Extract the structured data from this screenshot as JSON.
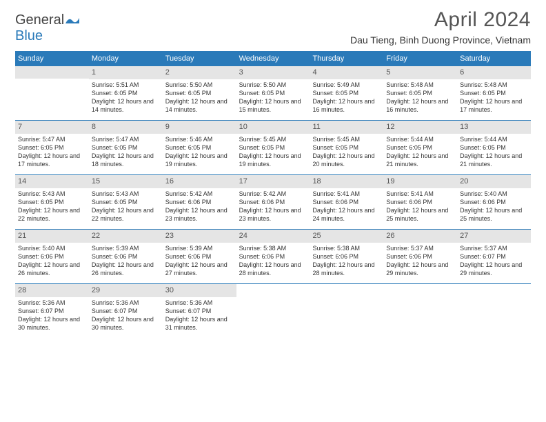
{
  "logo": {
    "part1": "General",
    "part2": "Blue"
  },
  "title": "April 2024",
  "location": "Dau Tieng, Binh Duong Province, Vietnam",
  "colors": {
    "header_bg": "#2a7ab9",
    "header_text": "#ffffff",
    "daynum_bg": "#e5e5e5",
    "border": "#2a7ab9",
    "text": "#333333",
    "title_text": "#555555"
  },
  "day_headers": [
    "Sunday",
    "Monday",
    "Tuesday",
    "Wednesday",
    "Thursday",
    "Friday",
    "Saturday"
  ],
  "weeks": [
    [
      {
        "blank": true
      },
      {
        "num": "1",
        "sunrise": "5:51 AM",
        "sunset": "6:05 PM",
        "daylight": "12 hours and 14 minutes."
      },
      {
        "num": "2",
        "sunrise": "5:50 AM",
        "sunset": "6:05 PM",
        "daylight": "12 hours and 14 minutes."
      },
      {
        "num": "3",
        "sunrise": "5:50 AM",
        "sunset": "6:05 PM",
        "daylight": "12 hours and 15 minutes."
      },
      {
        "num": "4",
        "sunrise": "5:49 AM",
        "sunset": "6:05 PM",
        "daylight": "12 hours and 16 minutes."
      },
      {
        "num": "5",
        "sunrise": "5:48 AM",
        "sunset": "6:05 PM",
        "daylight": "12 hours and 16 minutes."
      },
      {
        "num": "6",
        "sunrise": "5:48 AM",
        "sunset": "6:05 PM",
        "daylight": "12 hours and 17 minutes."
      }
    ],
    [
      {
        "num": "7",
        "sunrise": "5:47 AM",
        "sunset": "6:05 PM",
        "daylight": "12 hours and 17 minutes."
      },
      {
        "num": "8",
        "sunrise": "5:47 AM",
        "sunset": "6:05 PM",
        "daylight": "12 hours and 18 minutes."
      },
      {
        "num": "9",
        "sunrise": "5:46 AM",
        "sunset": "6:05 PM",
        "daylight": "12 hours and 19 minutes."
      },
      {
        "num": "10",
        "sunrise": "5:45 AM",
        "sunset": "6:05 PM",
        "daylight": "12 hours and 19 minutes."
      },
      {
        "num": "11",
        "sunrise": "5:45 AM",
        "sunset": "6:05 PM",
        "daylight": "12 hours and 20 minutes."
      },
      {
        "num": "12",
        "sunrise": "5:44 AM",
        "sunset": "6:05 PM",
        "daylight": "12 hours and 21 minutes."
      },
      {
        "num": "13",
        "sunrise": "5:44 AM",
        "sunset": "6:05 PM",
        "daylight": "12 hours and 21 minutes."
      }
    ],
    [
      {
        "num": "14",
        "sunrise": "5:43 AM",
        "sunset": "6:05 PM",
        "daylight": "12 hours and 22 minutes."
      },
      {
        "num": "15",
        "sunrise": "5:43 AM",
        "sunset": "6:05 PM",
        "daylight": "12 hours and 22 minutes."
      },
      {
        "num": "16",
        "sunrise": "5:42 AM",
        "sunset": "6:06 PM",
        "daylight": "12 hours and 23 minutes."
      },
      {
        "num": "17",
        "sunrise": "5:42 AM",
        "sunset": "6:06 PM",
        "daylight": "12 hours and 23 minutes."
      },
      {
        "num": "18",
        "sunrise": "5:41 AM",
        "sunset": "6:06 PM",
        "daylight": "12 hours and 24 minutes."
      },
      {
        "num": "19",
        "sunrise": "5:41 AM",
        "sunset": "6:06 PM",
        "daylight": "12 hours and 25 minutes."
      },
      {
        "num": "20",
        "sunrise": "5:40 AM",
        "sunset": "6:06 PM",
        "daylight": "12 hours and 25 minutes."
      }
    ],
    [
      {
        "num": "21",
        "sunrise": "5:40 AM",
        "sunset": "6:06 PM",
        "daylight": "12 hours and 26 minutes."
      },
      {
        "num": "22",
        "sunrise": "5:39 AM",
        "sunset": "6:06 PM",
        "daylight": "12 hours and 26 minutes."
      },
      {
        "num": "23",
        "sunrise": "5:39 AM",
        "sunset": "6:06 PM",
        "daylight": "12 hours and 27 minutes."
      },
      {
        "num": "24",
        "sunrise": "5:38 AM",
        "sunset": "6:06 PM",
        "daylight": "12 hours and 28 minutes."
      },
      {
        "num": "25",
        "sunrise": "5:38 AM",
        "sunset": "6:06 PM",
        "daylight": "12 hours and 28 minutes."
      },
      {
        "num": "26",
        "sunrise": "5:37 AM",
        "sunset": "6:06 PM",
        "daylight": "12 hours and 29 minutes."
      },
      {
        "num": "27",
        "sunrise": "5:37 AM",
        "sunset": "6:07 PM",
        "daylight": "12 hours and 29 minutes."
      }
    ],
    [
      {
        "num": "28",
        "sunrise": "5:36 AM",
        "sunset": "6:07 PM",
        "daylight": "12 hours and 30 minutes."
      },
      {
        "num": "29",
        "sunrise": "5:36 AM",
        "sunset": "6:07 PM",
        "daylight": "12 hours and 30 minutes."
      },
      {
        "num": "30",
        "sunrise": "5:36 AM",
        "sunset": "6:07 PM",
        "daylight": "12 hours and 31 minutes."
      },
      {
        "blank": true
      },
      {
        "blank": true
      },
      {
        "blank": true
      },
      {
        "blank": true
      }
    ]
  ],
  "labels": {
    "sunrise": "Sunrise:",
    "sunset": "Sunset:",
    "daylight": "Daylight:"
  }
}
